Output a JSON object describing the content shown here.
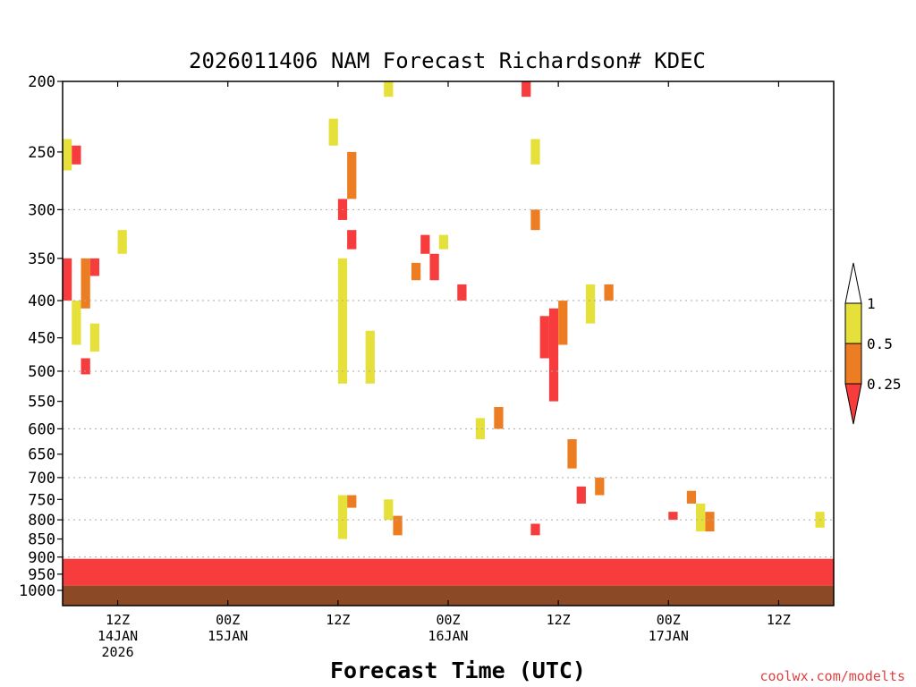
{
  "colors": {
    "lt_0_25": "#f63c3c",
    "0_25_to_0_5": "#ed7d22",
    "0_5_to_1": "#e6e03a",
    "gt_1": "#ffffff",
    "ground": "#8b4a25",
    "grid": "#aaaaaa",
    "credit": "#e04040"
  },
  "chart_data": {
    "type": "heatmap",
    "title": "2026011406 NAM Forecast Richardson# KDEC",
    "xlabel": "Forecast Time (UTC)",
    "ylabel": "",
    "y_scale": "log-pressure",
    "ylim": [
      1000,
      200
    ],
    "y_ticks": [
      200,
      250,
      300,
      350,
      400,
      450,
      500,
      550,
      600,
      650,
      700,
      750,
      800,
      850,
      900,
      950,
      1000
    ],
    "y_gridlines": [
      300,
      400,
      500,
      600,
      700,
      800,
      900
    ],
    "xlim": [
      "2026-01-14T06Z",
      "2026-01-17T18Z"
    ],
    "x_ticks": [
      {
        "time": "2026-01-14T12Z",
        "lines": [
          "12Z",
          "14JAN",
          "2026"
        ]
      },
      {
        "time": "2026-01-15T00Z",
        "lines": [
          "00Z",
          "15JAN"
        ]
      },
      {
        "time": "2026-01-15T12Z",
        "lines": [
          "12Z"
        ]
      },
      {
        "time": "2026-01-16T00Z",
        "lines": [
          "00Z",
          "16JAN"
        ]
      },
      {
        "time": "2026-01-16T12Z",
        "lines": [
          "12Z"
        ]
      },
      {
        "time": "2026-01-17T00Z",
        "lines": [
          "00Z",
          "17JAN"
        ]
      },
      {
        "time": "2026-01-17T12Z",
        "lines": [
          "12Z"
        ]
      }
    ],
    "colorbar": {
      "labels": [
        "1",
        "0.5",
        "0.25"
      ],
      "bins": [
        {
          "range": "> 1",
          "color": "#ffffff"
        },
        {
          "range": "0.5 - 1",
          "color": "#e6e03a"
        },
        {
          "range": "0.25 - 0.5",
          "color": "#ed7d22"
        },
        {
          "range": "< 0.25",
          "color": "#f63c3c"
        }
      ]
    },
    "surface_pressure_hPa": 985,
    "low_level_layer": {
      "top_hPa": 905,
      "category": "lt_0_25",
      "note_times": "continuous"
    },
    "patches": [
      {
        "hour": 0,
        "p_top": 240,
        "p_bot": 265,
        "category": "0_5_to_1"
      },
      {
        "hour": 1,
        "p_top": 245,
        "p_bot": 260,
        "category": "lt_0_25"
      },
      {
        "hour": 0,
        "p_top": 350,
        "p_bot": 400,
        "category": "lt_0_25"
      },
      {
        "hour": 2,
        "p_top": 350,
        "p_bot": 410,
        "category": "0_25_to_0_5"
      },
      {
        "hour": 3,
        "p_top": 350,
        "p_bot": 370,
        "category": "lt_0_25"
      },
      {
        "hour": 1,
        "p_top": 400,
        "p_bot": 460,
        "category": "0_5_to_1"
      },
      {
        "hour": 2,
        "p_top": 480,
        "p_bot": 505,
        "category": "lt_0_25"
      },
      {
        "hour": 3,
        "p_top": 430,
        "p_bot": 470,
        "category": "0_5_to_1"
      },
      {
        "hour": 6,
        "p_top": 320,
        "p_bot": 345,
        "category": "0_5_to_1"
      },
      {
        "hour": 29,
        "p_top": 225,
        "p_bot": 245,
        "category": "0_5_to_1"
      },
      {
        "hour": 31,
        "p_top": 250,
        "p_bot": 290,
        "category": "0_25_to_0_5"
      },
      {
        "hour": 30,
        "p_top": 290,
        "p_bot": 310,
        "category": "lt_0_25"
      },
      {
        "hour": 31,
        "p_top": 320,
        "p_bot": 340,
        "category": "lt_0_25"
      },
      {
        "hour": 30,
        "p_top": 350,
        "p_bot": 520,
        "category": "0_5_to_1"
      },
      {
        "hour": 33,
        "p_top": 440,
        "p_bot": 520,
        "category": "0_5_to_1"
      },
      {
        "hour": 35,
        "p_top": 200,
        "p_bot": 210,
        "category": "0_5_to_1"
      },
      {
        "hour": 39,
        "p_top": 325,
        "p_bot": 345,
        "category": "lt_0_25"
      },
      {
        "hour": 38,
        "p_top": 355,
        "p_bot": 375,
        "category": "0_25_to_0_5"
      },
      {
        "hour": 40,
        "p_top": 345,
        "p_bot": 375,
        "category": "lt_0_25"
      },
      {
        "hour": 41,
        "p_top": 325,
        "p_bot": 340,
        "category": "0_5_to_1"
      },
      {
        "hour": 43,
        "p_top": 380,
        "p_bot": 400,
        "category": "lt_0_25"
      },
      {
        "hour": 45,
        "p_top": 580,
        "p_bot": 620,
        "category": "0_5_to_1"
      },
      {
        "hour": 47,
        "p_top": 560,
        "p_bot": 600,
        "category": "0_25_to_0_5"
      },
      {
        "hour": 50,
        "p_top": 200,
        "p_bot": 210,
        "category": "lt_0_25"
      },
      {
        "hour": 51,
        "p_top": 240,
        "p_bot": 260,
        "category": "0_5_to_1"
      },
      {
        "hour": 51,
        "p_top": 300,
        "p_bot": 320,
        "category": "0_25_to_0_5"
      },
      {
        "hour": 52,
        "p_top": 420,
        "p_bot": 480,
        "category": "lt_0_25"
      },
      {
        "hour": 53,
        "p_top": 410,
        "p_bot": 550,
        "category": "lt_0_25"
      },
      {
        "hour": 54,
        "p_top": 400,
        "p_bot": 460,
        "category": "0_25_to_0_5"
      },
      {
        "hour": 55,
        "p_top": 620,
        "p_bot": 680,
        "category": "0_25_to_0_5"
      },
      {
        "hour": 57,
        "p_top": 380,
        "p_bot": 430,
        "category": "0_5_to_1"
      },
      {
        "hour": 59,
        "p_top": 380,
        "p_bot": 400,
        "category": "0_25_to_0_5"
      },
      {
        "hour": 56,
        "p_top": 720,
        "p_bot": 760,
        "category": "lt_0_25"
      },
      {
        "hour": 58,
        "p_top": 700,
        "p_bot": 740,
        "category": "0_25_to_0_5"
      },
      {
        "hour": 51,
        "p_top": 810,
        "p_bot": 840,
        "category": "lt_0_25"
      },
      {
        "hour": 31,
        "p_top": 740,
        "p_bot": 770,
        "category": "0_25_to_0_5"
      },
      {
        "hour": 30,
        "p_top": 740,
        "p_bot": 850,
        "category": "0_5_to_1"
      },
      {
        "hour": 36,
        "p_top": 790,
        "p_bot": 840,
        "category": "0_25_to_0_5"
      },
      {
        "hour": 35,
        "p_top": 750,
        "p_bot": 800,
        "category": "0_5_to_1"
      },
      {
        "hour": 68,
        "p_top": 730,
        "p_bot": 760,
        "category": "0_25_to_0_5"
      },
      {
        "hour": 70,
        "p_top": 780,
        "p_bot": 830,
        "category": "0_25_to_0_5"
      },
      {
        "hour": 69,
        "p_top": 760,
        "p_bot": 830,
        "category": "0_5_to_1"
      },
      {
        "hour": 82,
        "p_top": 780,
        "p_bot": 820,
        "category": "0_5_to_1"
      },
      {
        "hour": 66,
        "p_top": 780,
        "p_bot": 800,
        "category": "lt_0_25"
      }
    ]
  },
  "credit": "coolwx.com/modelts"
}
